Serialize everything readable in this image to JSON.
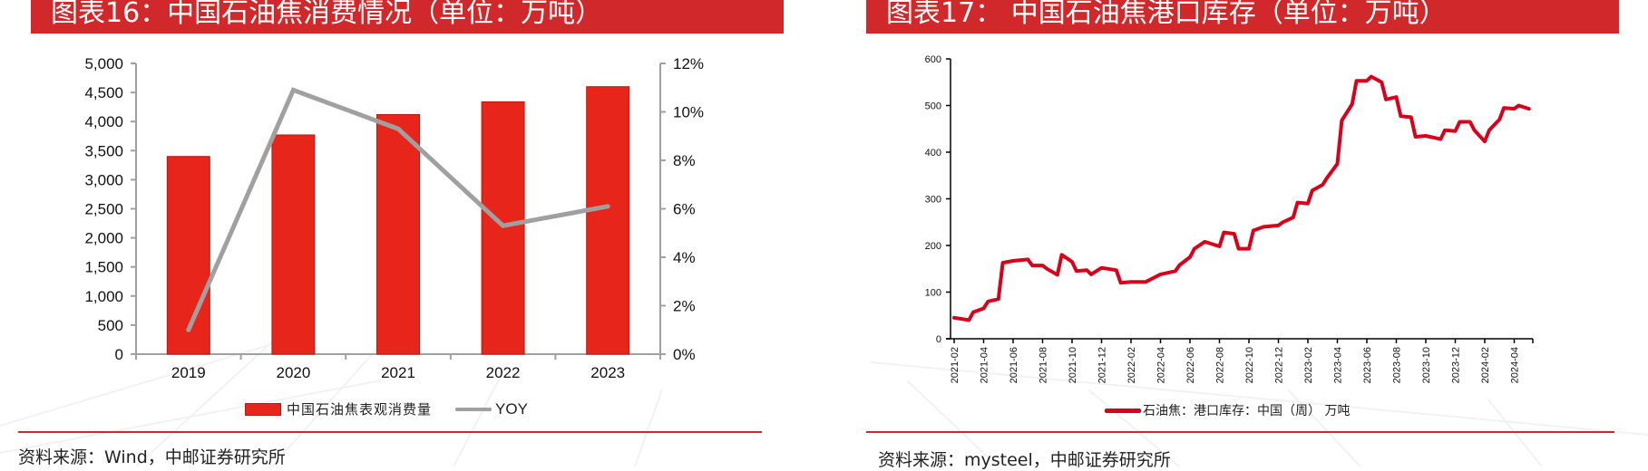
{
  "left_panel": {
    "title": "图表16：中国石油焦消费情况（单位：万吨）",
    "legend": {
      "bar_label": "中国石油焦表观消费量",
      "line_label": "YOY"
    },
    "source": "资料来源：Wind，中邮证券研究所"
  },
  "right_panel": {
    "title": "图表17：  中国石油焦港口库存（单位：万吨）",
    "legend": {
      "line_label": "石油焦：港口库存：中国（周）  万吨"
    },
    "source": "资料来源：mysteel，中邮证券研究所"
  },
  "colors": {
    "title_bg": "#d0282b",
    "bar": "#e8251a",
    "yoy_line": "#a0a0a0",
    "stock_line": "#d9001b",
    "axis": "#a0a0a0"
  },
  "chart_data": [
    {
      "type": "bar",
      "title": "图表16：中国石油焦消费情况（单位：万吨）",
      "categories": [
        "2019",
        "2020",
        "2021",
        "2022",
        "2023"
      ],
      "series": [
        {
          "name": "中国石油焦表观消费量",
          "type": "bar",
          "axis": "left",
          "values": [
            3400,
            3770,
            4120,
            4340,
            4600
          ]
        },
        {
          "name": "YOY",
          "type": "line",
          "axis": "right",
          "values": [
            1.0,
            10.9,
            9.3,
            5.3,
            6.1
          ]
        }
      ],
      "left_axis": {
        "ylim": [
          0,
          5000
        ],
        "ticks": [
          "0",
          "500",
          "1,000",
          "1,500",
          "2,000",
          "2,500",
          "3,000",
          "3,500",
          "4,000",
          "4,500",
          "5,000"
        ]
      },
      "right_axis": {
        "ylim": [
          0,
          12
        ],
        "ticks": [
          "0%",
          "2%",
          "4%",
          "6%",
          "8%",
          "10%",
          "12%"
        ]
      },
      "xlabel": "",
      "ylabel": "",
      "grid": false,
      "legend_position": "bottom"
    },
    {
      "type": "line",
      "title": "图表17：中国石油焦港口库存（单位：万吨）",
      "x_ticks": [
        "2021-02",
        "2021-04",
        "2021-06",
        "2021-08",
        "2021-10",
        "2021-12",
        "2022-02",
        "2022-04",
        "2022-06",
        "2022-08",
        "2022-10",
        "2022-12",
        "2023-02",
        "2023-04",
        "2023-06",
        "2023-08",
        "2023-10",
        "2023-12",
        "2024-02",
        "2024-04"
      ],
      "y_ticks": [
        "0",
        "100",
        "200",
        "300",
        "400",
        "500",
        "600"
      ],
      "ylim": [
        0,
        600
      ],
      "series": [
        {
          "name": "石油焦：港口库存：中国（周） 万吨",
          "points": [
            [
              "2021-02",
              45
            ],
            [
              "2021-03",
              40
            ],
            [
              "2021-03",
              57
            ],
            [
              "2021-04",
              65
            ],
            [
              "2021-04",
              80
            ],
            [
              "2021-05",
              85
            ],
            [
              "2021-05",
              163
            ],
            [
              "2021-06",
              167
            ],
            [
              "2021-07",
              170
            ],
            [
              "2021-07",
              157
            ],
            [
              "2021-08",
              157
            ],
            [
              "2021-08",
              150
            ],
            [
              "2021-09",
              137
            ],
            [
              "2021-09",
              180
            ],
            [
              "2021-10",
              165
            ],
            [
              "2021-10",
              145
            ],
            [
              "2021-11",
              147
            ],
            [
              "2021-11",
              138
            ],
            [
              "2021-12",
              152
            ],
            [
              "2022-01",
              147
            ],
            [
              "2022-01",
              120
            ],
            [
              "2022-02",
              122
            ],
            [
              "2022-03",
              122
            ],
            [
              "2022-04",
              138
            ],
            [
              "2022-05",
              145
            ],
            [
              "2022-05",
              158
            ],
            [
              "2022-06",
              175
            ],
            [
              "2022-06",
              193
            ],
            [
              "2022-07",
              208
            ],
            [
              "2022-08",
              198
            ],
            [
              "2022-08",
              228
            ],
            [
              "2022-09",
              225
            ],
            [
              "2022-09",
              193
            ],
            [
              "2022-10",
              193
            ],
            [
              "2022-10",
              232
            ],
            [
              "2022-11",
              240
            ],
            [
              "2022-12",
              243
            ],
            [
              "2022-12",
              250
            ],
            [
              "2023-01",
              260
            ],
            [
              "2023-01",
              292
            ],
            [
              "2023-02",
              290
            ],
            [
              "2023-02",
              318
            ],
            [
              "2023-03",
              330
            ],
            [
              "2023-03",
              345
            ],
            [
              "2023-04",
              375
            ],
            [
              "2023-04",
              468
            ],
            [
              "2023-05",
              503
            ],
            [
              "2023-05",
              553
            ],
            [
              "2023-06",
              553
            ],
            [
              "2023-06",
              562
            ],
            [
              "2023-07",
              550
            ],
            [
              "2023-07",
              513
            ],
            [
              "2023-08",
              518
            ],
            [
              "2023-08",
              477
            ],
            [
              "2023-09",
              475
            ],
            [
              "2023-09",
              433
            ],
            [
              "2023-10",
              435
            ],
            [
              "2023-11",
              428
            ],
            [
              "2023-11",
              447
            ],
            [
              "2023-12",
              445
            ],
            [
              "2023-12",
              465
            ],
            [
              "2024-01",
              465
            ],
            [
              "2024-01",
              447
            ],
            [
              "2024-02",
              423
            ],
            [
              "2024-02",
              447
            ],
            [
              "2024-03",
              470
            ],
            [
              "2024-03",
              495
            ],
            [
              "2024-04",
              493
            ],
            [
              "2024-04",
              500
            ],
            [
              "2024-05",
              493
            ]
          ]
        }
      ],
      "grid": false,
      "legend_position": "bottom"
    }
  ]
}
